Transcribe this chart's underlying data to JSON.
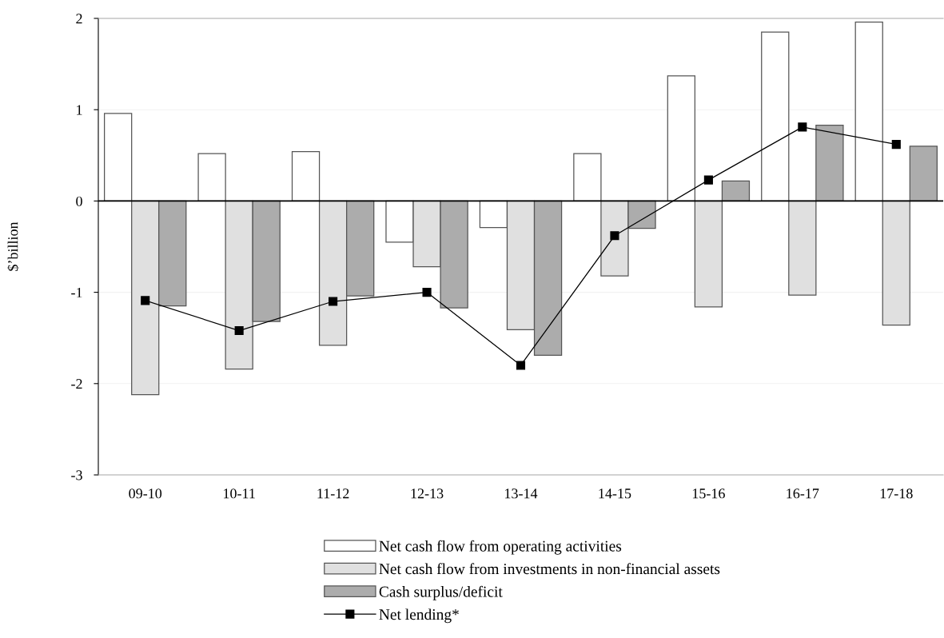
{
  "chart_data": {
    "type": "bar",
    "ylabel": "$’billion",
    "categories": [
      "09-10",
      "10-11",
      "11-12",
      "12-13",
      "13-14",
      "14-15",
      "15-16",
      "16-17",
      "17-18"
    ],
    "series": [
      {
        "name": "Net cash flow from operating activities",
        "color": "#ffffff",
        "values": [
          0.96,
          0.52,
          0.54,
          -0.45,
          -0.29,
          0.52,
          1.37,
          1.85,
          1.96
        ]
      },
      {
        "name": "Net cash flow from investments in non-financial assets",
        "color": "#e0e0e0",
        "values": [
          -2.12,
          -1.84,
          -1.58,
          -0.72,
          -1.41,
          -0.82,
          -1.16,
          -1.03,
          -1.36
        ]
      },
      {
        "name": "Cash surplus/deficit",
        "color": "#acacac",
        "values": [
          -1.15,
          -1.32,
          -1.04,
          -1.17,
          -1.69,
          -0.3,
          0.22,
          0.83,
          0.6
        ]
      },
      {
        "name": "Net lending*",
        "color": "#000000",
        "type": "line",
        "marker": "square",
        "values": [
          -1.09,
          -1.42,
          -1.1,
          -1.0,
          -1.8,
          -0.38,
          0.23,
          0.81,
          0.62
        ]
      }
    ],
    "ylim": [
      -3,
      2
    ],
    "yticks": [
      -3,
      -2,
      -1,
      0,
      1,
      2
    ],
    "ref_lines": [
      {
        "axis": "y",
        "value": 0,
        "color": "#000000"
      }
    ],
    "grid": "y",
    "legend": "bottom"
  }
}
